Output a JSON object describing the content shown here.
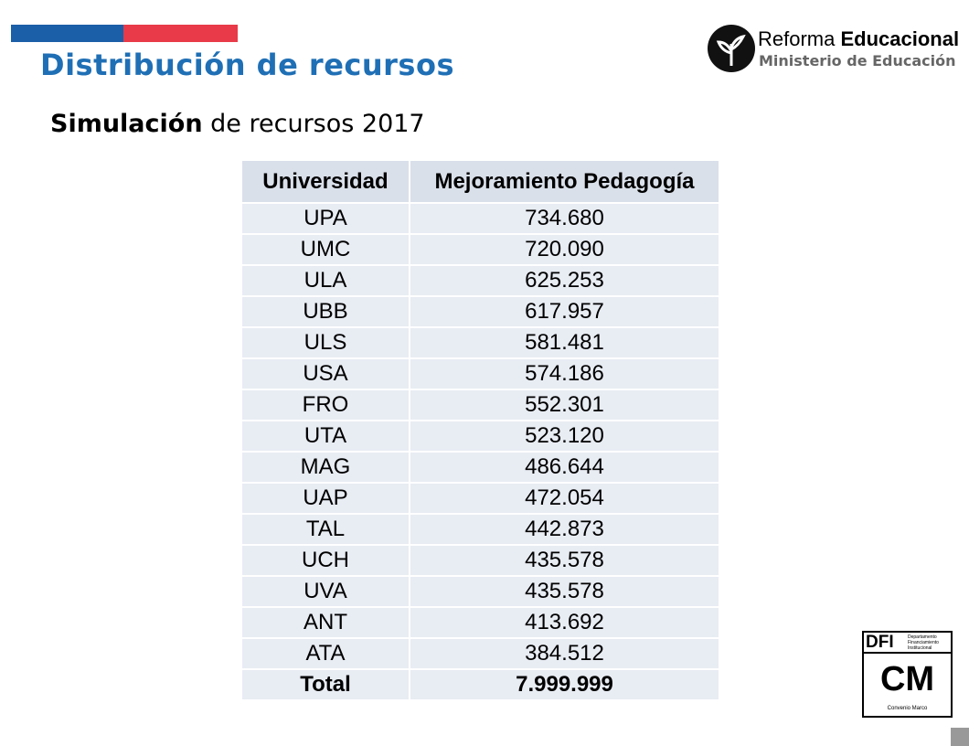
{
  "header": {
    "title": "Distribución de recursos",
    "subtitle_bold": "Simulación",
    "subtitle_rest": "de recursos 2017"
  },
  "logo": {
    "reforma": "Reforma",
    "educacional": "Educacional",
    "ministerio": "Ministerio de Educación"
  },
  "badge": {
    "dfi": "DFI",
    "department": "Departamento Financiamiento Institucional",
    "cm": "CM",
    "caption": "Convenio Marco"
  },
  "table": {
    "header": [
      "Universidad",
      "Mejoramiento Pedagogía"
    ],
    "rows": [
      [
        "UPA",
        "734.680"
      ],
      [
        "UMC",
        "720.090"
      ],
      [
        "ULA",
        "625.253"
      ],
      [
        "UBB",
        "617.957"
      ],
      [
        "ULS",
        "581.481"
      ],
      [
        "USA",
        "574.186"
      ],
      [
        "FRO",
        "552.301"
      ],
      [
        "UTA",
        "523.120"
      ],
      [
        "MAG",
        "486.644"
      ],
      [
        "UAP",
        "472.054"
      ],
      [
        "TAL",
        "442.873"
      ],
      [
        "UCH",
        "435.578"
      ],
      [
        "UVA",
        "435.578"
      ],
      [
        "ANT",
        "413.692"
      ],
      [
        "ATA",
        "384.512"
      ]
    ],
    "total": [
      "Total",
      "7.999.999"
    ]
  }
}
